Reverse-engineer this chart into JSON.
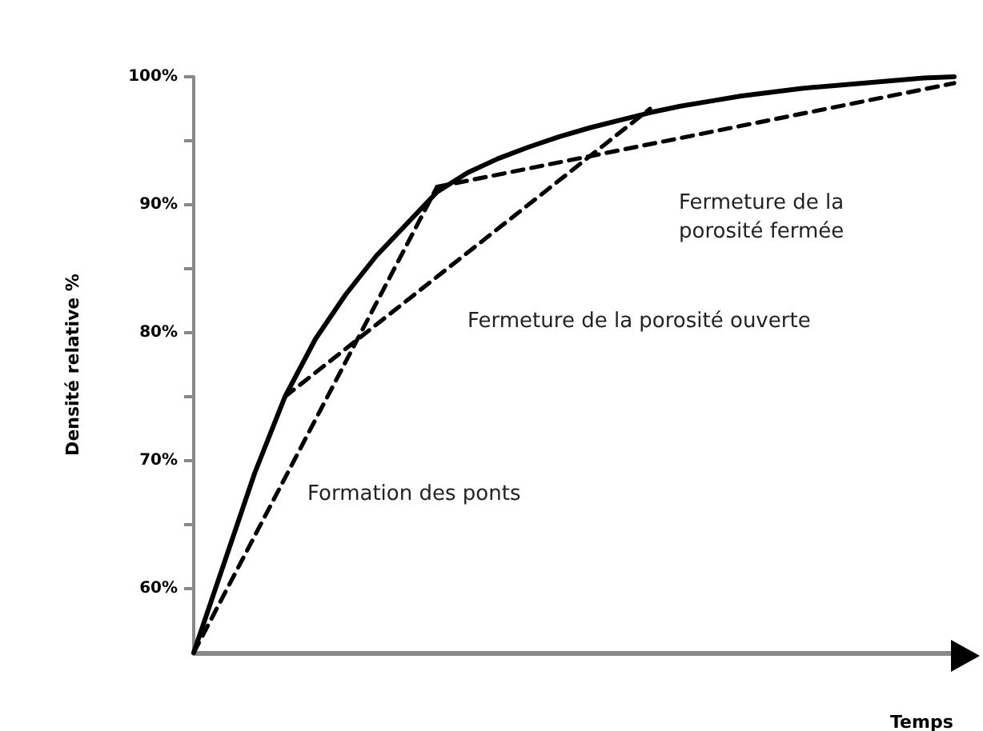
{
  "chart_data": {
    "type": "line",
    "xlabel": "Temps",
    "ylabel": "Densité relative %",
    "categories": [
      null,
      null,
      null,
      null,
      null,
      null,
      null,
      null,
      null,
      null,
      null,
      null,
      null,
      null,
      null,
      null,
      null,
      null,
      null,
      null,
      null,
      null,
      null,
      null,
      null,
      null
    ],
    "series": [
      {
        "color": "#000000",
        "line_style": "solid",
        "values": [
          55,
          62,
          69,
          75,
          79.5,
          83,
          86,
          88.5,
          91,
          92.5,
          93.6,
          94.5,
          95.3,
          96,
          96.6,
          97.2,
          97.7,
          98.1,
          98.5,
          98.8,
          99.1,
          99.3,
          99.5,
          99.7,
          99.9,
          100
        ]
      },
      {
        "color": "#000000",
        "line_style": "dashed",
        "values": [
          55,
          null,
          null,
          null,
          null,
          null,
          null,
          null,
          91.4,
          null,
          null,
          null,
          null,
          null,
          null,
          null,
          null,
          null,
          null,
          null,
          null,
          null,
          null,
          null,
          null,
          null
        ]
      },
      {
        "color": "#000000",
        "line_style": "dashed",
        "values": [
          null,
          null,
          null,
          75,
          null,
          null,
          null,
          null,
          null,
          null,
          null,
          null,
          null,
          null,
          null,
          97.5,
          null,
          null,
          null,
          null,
          null,
          null,
          null,
          null,
          null,
          null
        ]
      },
      {
        "color": "#000000",
        "line_style": "dashed",
        "values": [
          null,
          null,
          null,
          null,
          null,
          null,
          null,
          null,
          91.4,
          null,
          null,
          null,
          null,
          null,
          null,
          null,
          null,
          null,
          null,
          null,
          null,
          null,
          null,
          null,
          null,
          99.5
        ]
      }
    ],
    "ylim": [
      55,
      100
    ],
    "yticks": [
      {
        "value": 60,
        "label": "60%"
      },
      {
        "value": 65,
        "label": null
      },
      {
        "value": 70,
        "label": "70%"
      },
      {
        "value": 75,
        "label": null
      },
      {
        "value": 80,
        "label": "80%"
      },
      {
        "value": 85,
        "label": null
      },
      {
        "value": 90,
        "label": "90%"
      },
      {
        "value": 95,
        "label": null
      },
      {
        "value": 100,
        "label": "100%"
      }
    ],
    "tick_labels": "y",
    "grid": false,
    "marker": "none",
    "annotations": [
      "Fermeture de la\nporosité fermée",
      "Fermeture de la porosité ouverte",
      "Formation des ponts"
    ]
  }
}
